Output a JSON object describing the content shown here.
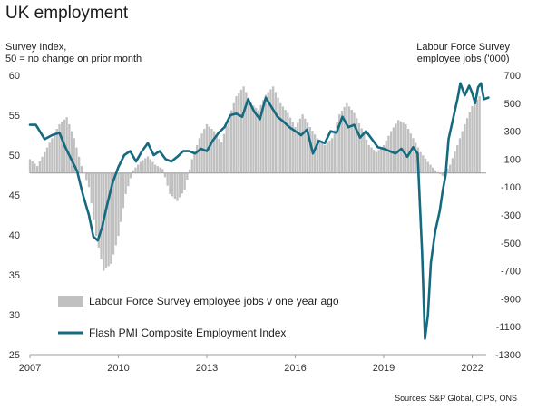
{
  "header": {
    "title": "UK employment",
    "left_axis_note_line1": "Survey Index,",
    "left_axis_note_line2": "50 = no change on prior month",
    "right_axis_note_line1": "Labour Force Survey",
    "right_axis_note_line2": "employee jobs  ('000)",
    "source": "Sources: S&P Global, CIPS, ONS"
  },
  "colors": {
    "bars": "#c0c0c0",
    "line": "#156a80",
    "axis": "#9e9e9e"
  },
  "chart_data": {
    "type": "bar+line",
    "x_tick_labels": [
      "2007",
      "2010",
      "2013",
      "2016",
      "2019",
      "2022"
    ],
    "x_ticks": [
      2007,
      2010,
      2013,
      2016,
      2019,
      2022
    ],
    "xlim": [
      2007,
      2022.6
    ],
    "left_axis": {
      "ylim": [
        25,
        60
      ],
      "ticks": [
        25,
        30,
        35,
        40,
        45,
        50,
        55,
        60
      ]
    },
    "right_axis": {
      "ylim": [
        -1300,
        700
      ],
      "ticks": [
        -1300,
        -1100,
        -900,
        -700,
        -500,
        -300,
        -100,
        100,
        300,
        500,
        700
      ]
    },
    "grid": false,
    "legend_position": "bottom-left",
    "series": [
      {
        "name": "Labour Force Survey employee jobs v one year ago",
        "kind": "bar",
        "axis": "right",
        "points": [
          [
            2007.0,
            100
          ],
          [
            2007.25,
            50
          ],
          [
            2007.5,
            150
          ],
          [
            2007.75,
            250
          ],
          [
            2008.0,
            350
          ],
          [
            2008.25,
            400
          ],
          [
            2008.5,
            250
          ],
          [
            2008.75,
            50
          ],
          [
            2009.0,
            -100
          ],
          [
            2009.25,
            -450
          ],
          [
            2009.5,
            -700
          ],
          [
            2009.75,
            -650
          ],
          [
            2010.0,
            -450
          ],
          [
            2010.25,
            -150
          ],
          [
            2010.5,
            20
          ],
          [
            2010.75,
            80
          ],
          [
            2011.0,
            120
          ],
          [
            2011.25,
            60
          ],
          [
            2011.5,
            30
          ],
          [
            2011.75,
            -150
          ],
          [
            2012.0,
            -200
          ],
          [
            2012.25,
            -120
          ],
          [
            2012.5,
            100
          ],
          [
            2012.75,
            250
          ],
          [
            2013.0,
            350
          ],
          [
            2013.25,
            300
          ],
          [
            2013.5,
            220
          ],
          [
            2013.75,
            400
          ],
          [
            2014.0,
            550
          ],
          [
            2014.25,
            620
          ],
          [
            2014.5,
            500
          ],
          [
            2014.75,
            450
          ],
          [
            2015.0,
            560
          ],
          [
            2015.25,
            620
          ],
          [
            2015.5,
            500
          ],
          [
            2015.75,
            430
          ],
          [
            2016.0,
            330
          ],
          [
            2016.25,
            420
          ],
          [
            2016.5,
            330
          ],
          [
            2016.75,
            250
          ],
          [
            2017.0,
            200
          ],
          [
            2017.25,
            250
          ],
          [
            2017.5,
            420
          ],
          [
            2017.75,
            500
          ],
          [
            2018.0,
            430
          ],
          [
            2018.25,
            320
          ],
          [
            2018.5,
            200
          ],
          [
            2018.75,
            150
          ],
          [
            2019.0,
            200
          ],
          [
            2019.25,
            300
          ],
          [
            2019.5,
            380
          ],
          [
            2019.75,
            350
          ],
          [
            2020.0,
            250
          ],
          [
            2020.25,
            150
          ],
          [
            2020.5,
            80
          ],
          [
            2020.75,
            20
          ],
          [
            2021.0,
            -20
          ],
          [
            2021.25,
            60
          ],
          [
            2021.5,
            200
          ],
          [
            2021.75,
            350
          ],
          [
            2022.0,
            480
          ],
          [
            2022.25,
            550
          ]
        ]
      },
      {
        "name": "Flash PMI Composite Employment Index",
        "kind": "line",
        "axis": "left",
        "points": [
          [
            2007.0,
            53.8
          ],
          [
            2007.2,
            53.8
          ],
          [
            2007.5,
            52.0
          ],
          [
            2007.75,
            52.5
          ],
          [
            2008.0,
            52.8
          ],
          [
            2008.2,
            51.0
          ],
          [
            2008.4,
            49.5
          ],
          [
            2008.6,
            48.0
          ],
          [
            2008.8,
            45.0
          ],
          [
            2009.0,
            42.5
          ],
          [
            2009.15,
            39.8
          ],
          [
            2009.3,
            39.3
          ],
          [
            2009.45,
            41.0
          ],
          [
            2009.6,
            43.5
          ],
          [
            2009.8,
            46.5
          ],
          [
            2010.0,
            48.5
          ],
          [
            2010.2,
            50.0
          ],
          [
            2010.4,
            50.5
          ],
          [
            2010.6,
            49.2
          ],
          [
            2010.8,
            50.5
          ],
          [
            2011.0,
            51.5
          ],
          [
            2011.2,
            50.0
          ],
          [
            2011.4,
            50.5
          ],
          [
            2011.6,
            49.5
          ],
          [
            2011.8,
            49.2
          ],
          [
            2012.0,
            49.8
          ],
          [
            2012.2,
            50.5
          ],
          [
            2012.4,
            50.5
          ],
          [
            2012.6,
            50.2
          ],
          [
            2012.8,
            50.8
          ],
          [
            2013.0,
            50.5
          ],
          [
            2013.2,
            51.8
          ],
          [
            2013.4,
            52.8
          ],
          [
            2013.6,
            53.5
          ],
          [
            2013.8,
            55.0
          ],
          [
            2014.0,
            55.2
          ],
          [
            2014.2,
            54.8
          ],
          [
            2014.4,
            57.0
          ],
          [
            2014.6,
            55.5
          ],
          [
            2014.8,
            54.5
          ],
          [
            2015.0,
            57.2
          ],
          [
            2015.2,
            56.0
          ],
          [
            2015.4,
            54.8
          ],
          [
            2015.6,
            54.2
          ],
          [
            2015.8,
            53.5
          ],
          [
            2016.0,
            53.0
          ],
          [
            2016.2,
            52.5
          ],
          [
            2016.4,
            53.2
          ],
          [
            2016.6,
            50.2
          ],
          [
            2016.8,
            51.8
          ],
          [
            2017.0,
            51.5
          ],
          [
            2017.2,
            53.0
          ],
          [
            2017.4,
            52.8
          ],
          [
            2017.6,
            54.8
          ],
          [
            2017.8,
            53.5
          ],
          [
            2018.0,
            53.8
          ],
          [
            2018.2,
            52.2
          ],
          [
            2018.4,
            53.0
          ],
          [
            2018.6,
            52.0
          ],
          [
            2018.8,
            51.0
          ],
          [
            2019.0,
            50.8
          ],
          [
            2019.2,
            50.5
          ],
          [
            2019.4,
            50.2
          ],
          [
            2019.6,
            50.8
          ],
          [
            2019.8,
            49.8
          ],
          [
            2020.0,
            51.0
          ],
          [
            2020.15,
            50.2
          ],
          [
            2020.3,
            38.0
          ],
          [
            2020.4,
            27.0
          ],
          [
            2020.5,
            30.0
          ],
          [
            2020.6,
            36.5
          ],
          [
            2020.75,
            40.5
          ],
          [
            2020.9,
            43.0
          ],
          [
            2021.0,
            45.5
          ],
          [
            2021.1,
            47.5
          ],
          [
            2021.2,
            52.0
          ],
          [
            2021.35,
            54.5
          ],
          [
            2021.5,
            57.0
          ],
          [
            2021.6,
            59.0
          ],
          [
            2021.75,
            57.5
          ],
          [
            2021.9,
            58.7
          ],
          [
            2022.0,
            57.8
          ],
          [
            2022.1,
            56.5
          ],
          [
            2022.2,
            58.5
          ],
          [
            2022.3,
            59.0
          ],
          [
            2022.4,
            57.0
          ],
          [
            2022.55,
            57.2
          ]
        ]
      }
    ]
  }
}
